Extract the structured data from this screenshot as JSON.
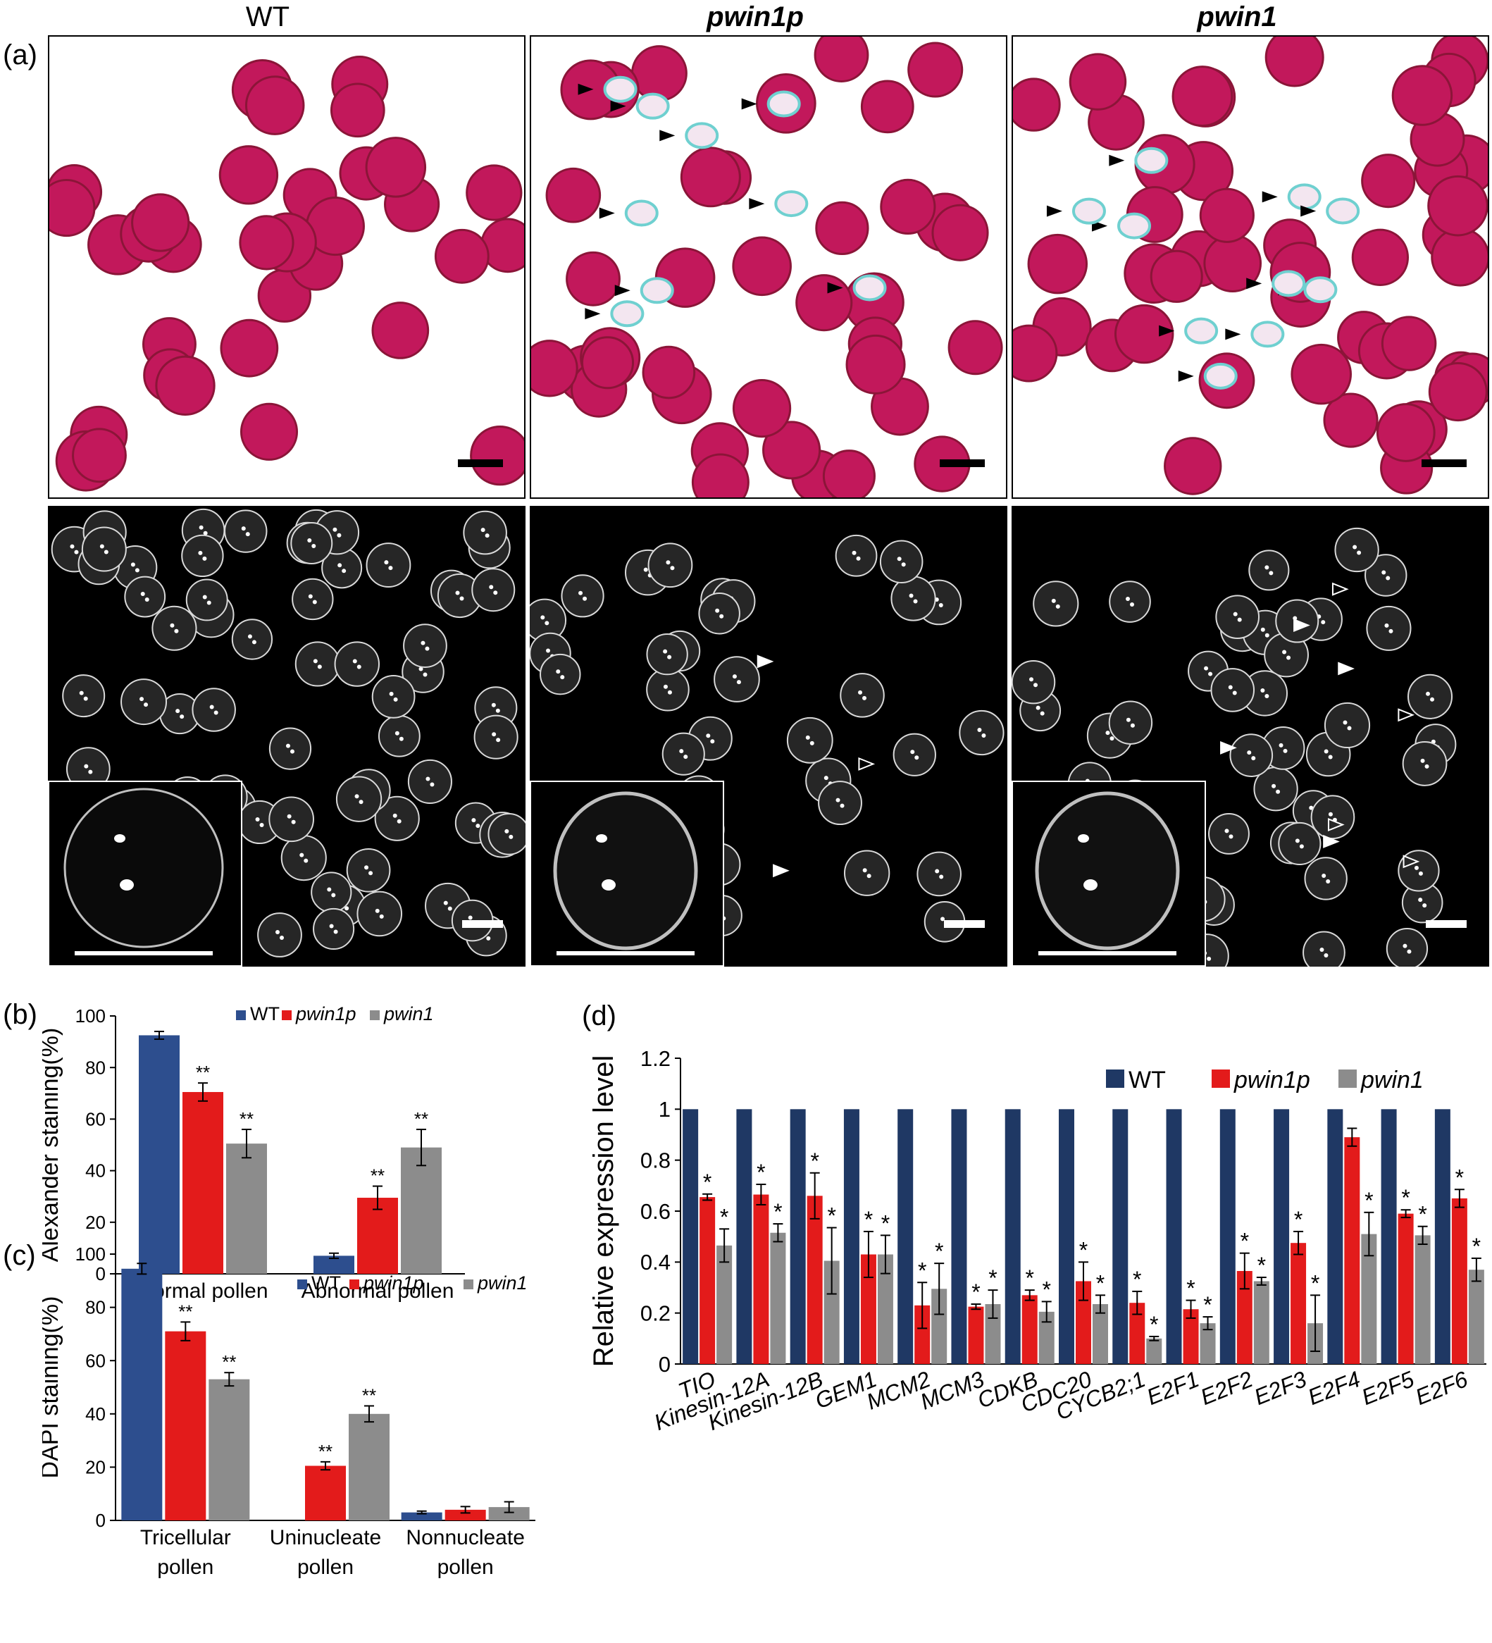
{
  "figure": {
    "panel_labels": [
      "(a)",
      "(b)",
      "(c)",
      "(d)"
    ],
    "column_titles": [
      "WT",
      "pwin1p",
      "pwin1"
    ]
  },
  "colors": {
    "wt": "#2d4e8e",
    "pwin1p": "#e31b1b",
    "pwin1": "#8c8c8c",
    "d_wt": "#1f3864",
    "pollen_stain": "#c2185b",
    "pollen_dark": "#8b1538",
    "aborted_pollen": "#6fd0d0"
  },
  "icons": {
    "scale_bar": "scale-bar",
    "arrowhead_filled": "filled-arrowhead",
    "arrowhead_open": "open-arrowhead"
  },
  "chart_data": [
    {
      "id": "b",
      "type": "bar",
      "ylabel": "Alexander staining(%)",
      "ylim": [
        0,
        100
      ],
      "yticks": [
        0,
        20,
        40,
        60,
        80,
        100
      ],
      "categories": [
        "Normal pollen",
        "Abnormal pollen"
      ],
      "legend_labels": [
        "WT",
        "pwin1p",
        "pwin1"
      ],
      "legend_placement": "top-right",
      "grid": false,
      "series": [
        {
          "name": "WT",
          "values": [
            92.5,
            7
          ],
          "errors": [
            1.5,
            1
          ],
          "marks": [
            "",
            ""
          ]
        },
        {
          "name": "pwin1p",
          "values": [
            70.5,
            29.5
          ],
          "errors": [
            3.5,
            4.5
          ],
          "marks": [
            "**",
            "**"
          ]
        },
        {
          "name": "pwin1",
          "values": [
            50.5,
            49
          ],
          "errors": [
            5.5,
            7
          ],
          "marks": [
            "**",
            "**"
          ]
        }
      ]
    },
    {
      "id": "c",
      "type": "bar",
      "ylabel": "DAPI staining(%)",
      "ylim": [
        0,
        100
      ],
      "yticks": [
        0,
        20,
        40,
        60,
        80,
        100
      ],
      "categories": [
        [
          "Tricellular",
          "pollen"
        ],
        [
          "Uninucleate",
          "pollen"
        ],
        [
          "Nonnucleate",
          "pollen"
        ]
      ],
      "legend_labels": [
        "WT",
        "pwin1p",
        "pwin1"
      ],
      "legend_placement": "top-right",
      "grid": false,
      "series": [
        {
          "name": "WT",
          "values": [
            94.5,
            0,
            3
          ],
          "errors": [
            2,
            0,
            0.5
          ],
          "marks": [
            "",
            "",
            ""
          ]
        },
        {
          "name": "pwin1p",
          "values": [
            71,
            20.5,
            4
          ],
          "errors": [
            3.5,
            1.5,
            1.2
          ],
          "marks": [
            "**",
            "**",
            ""
          ]
        },
        {
          "name": "pwin1",
          "values": [
            53,
            40,
            5
          ],
          "errors": [
            2.5,
            3,
            2
          ],
          "marks": [
            "**",
            "**",
            ""
          ]
        }
      ]
    },
    {
      "id": "d",
      "type": "bar",
      "ylabel": "Relative expression level",
      "ylim": [
        0,
        1.2
      ],
      "yticks": [
        "0",
        "0.2",
        "0.4",
        "0.6",
        "0.8",
        "1",
        "1.2"
      ],
      "categories": [
        "TIO",
        "Kinesin-12A",
        "Kinesin-12B",
        "GEM1",
        "MCM2",
        "MCM3",
        "CDKB",
        "CDC20",
        "CYCB2;1",
        "E2F1",
        "E2F2",
        "E2F3",
        "E2F4",
        "E2F5",
        "E2F6"
      ],
      "legend_labels": [
        "WT",
        "pwin1p",
        "pwin1"
      ],
      "legend_placement": "top-right",
      "grid": false,
      "series": [
        {
          "name": "WT",
          "values": [
            1,
            1,
            1,
            1,
            1,
            1,
            1,
            1,
            1,
            1,
            1,
            1,
            1,
            1,
            1
          ],
          "errors": [],
          "marks": []
        },
        {
          "name": "pwin1p",
          "values": [
            0.655,
            0.665,
            0.66,
            0.43,
            0.23,
            0.225,
            0.27,
            0.325,
            0.24,
            0.215,
            0.365,
            0.475,
            0.89,
            0.59,
            0.65
          ],
          "errors": [
            0.012,
            0.04,
            0.09,
            0.09,
            0.09,
            0.01,
            0.02,
            0.075,
            0.045,
            0.035,
            0.07,
            0.045,
            0.035,
            0.015,
            0.035
          ],
          "marks": [
            "*",
            "*",
            "*",
            "*",
            "*",
            "*",
            "*",
            "*",
            "*",
            "*",
            "*",
            "*",
            "",
            "*",
            "*"
          ]
        },
        {
          "name": "pwin1",
          "values": [
            0.465,
            0.515,
            0.405,
            0.43,
            0.295,
            0.235,
            0.205,
            0.235,
            0.1,
            0.16,
            0.325,
            0.16,
            0.51,
            0.505,
            0.37
          ],
          "errors": [
            0.065,
            0.035,
            0.13,
            0.075,
            0.1,
            0.055,
            0.04,
            0.035,
            0.008,
            0.025,
            0.015,
            0.11,
            0.085,
            0.035,
            0.045
          ],
          "marks": [
            "*",
            "*",
            "*",
            "*",
            "*",
            "*",
            "*",
            "*",
            "*",
            "*",
            "*",
            "*",
            "*",
            "*",
            "*"
          ]
        }
      ]
    }
  ]
}
